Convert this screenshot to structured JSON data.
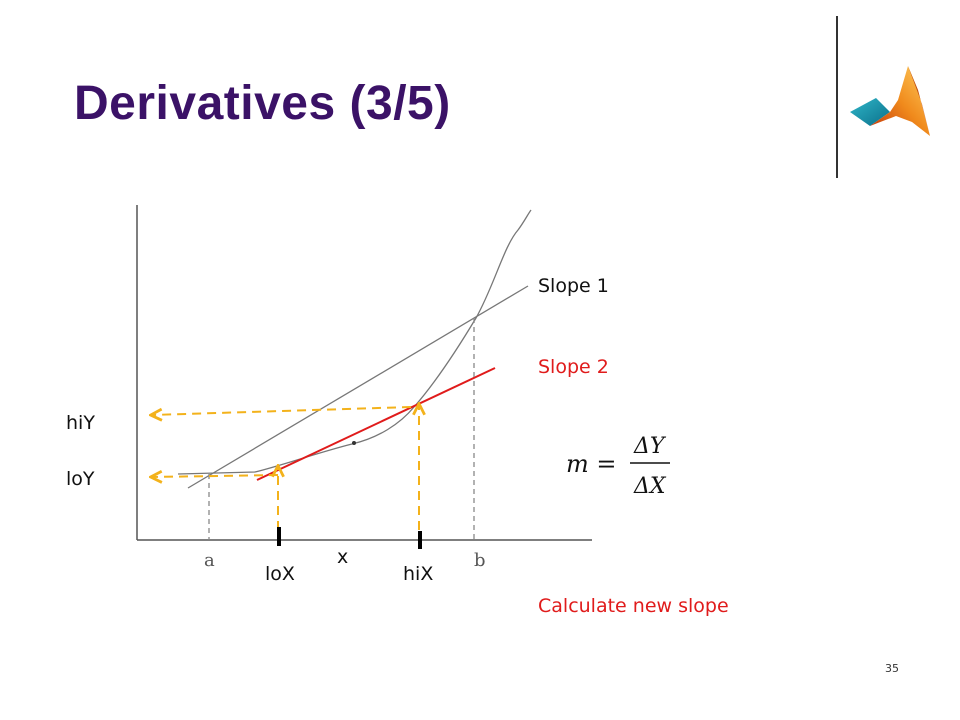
{
  "slide": {
    "title": "Derivatives (3/5)",
    "page_number": "35"
  },
  "diagram": {
    "labels": {
      "slope1": "Slope 1",
      "slope2": "Slope 2",
      "hiY": "hiY",
      "loY": "loY",
      "a": "a",
      "b": "b",
      "x": "x",
      "loX": "loX",
      "hiX": "hiX",
      "calculate": "Calculate new slope"
    },
    "formula": {
      "lhs": "m =",
      "numerator": "ΔY",
      "denominator": "ΔX"
    },
    "colors": {
      "title": "#3b1267",
      "slope2_line": "#e01b1b",
      "guide_arrows": "#f3b21b",
      "curve": "#777777",
      "axes": "#555555"
    }
  }
}
